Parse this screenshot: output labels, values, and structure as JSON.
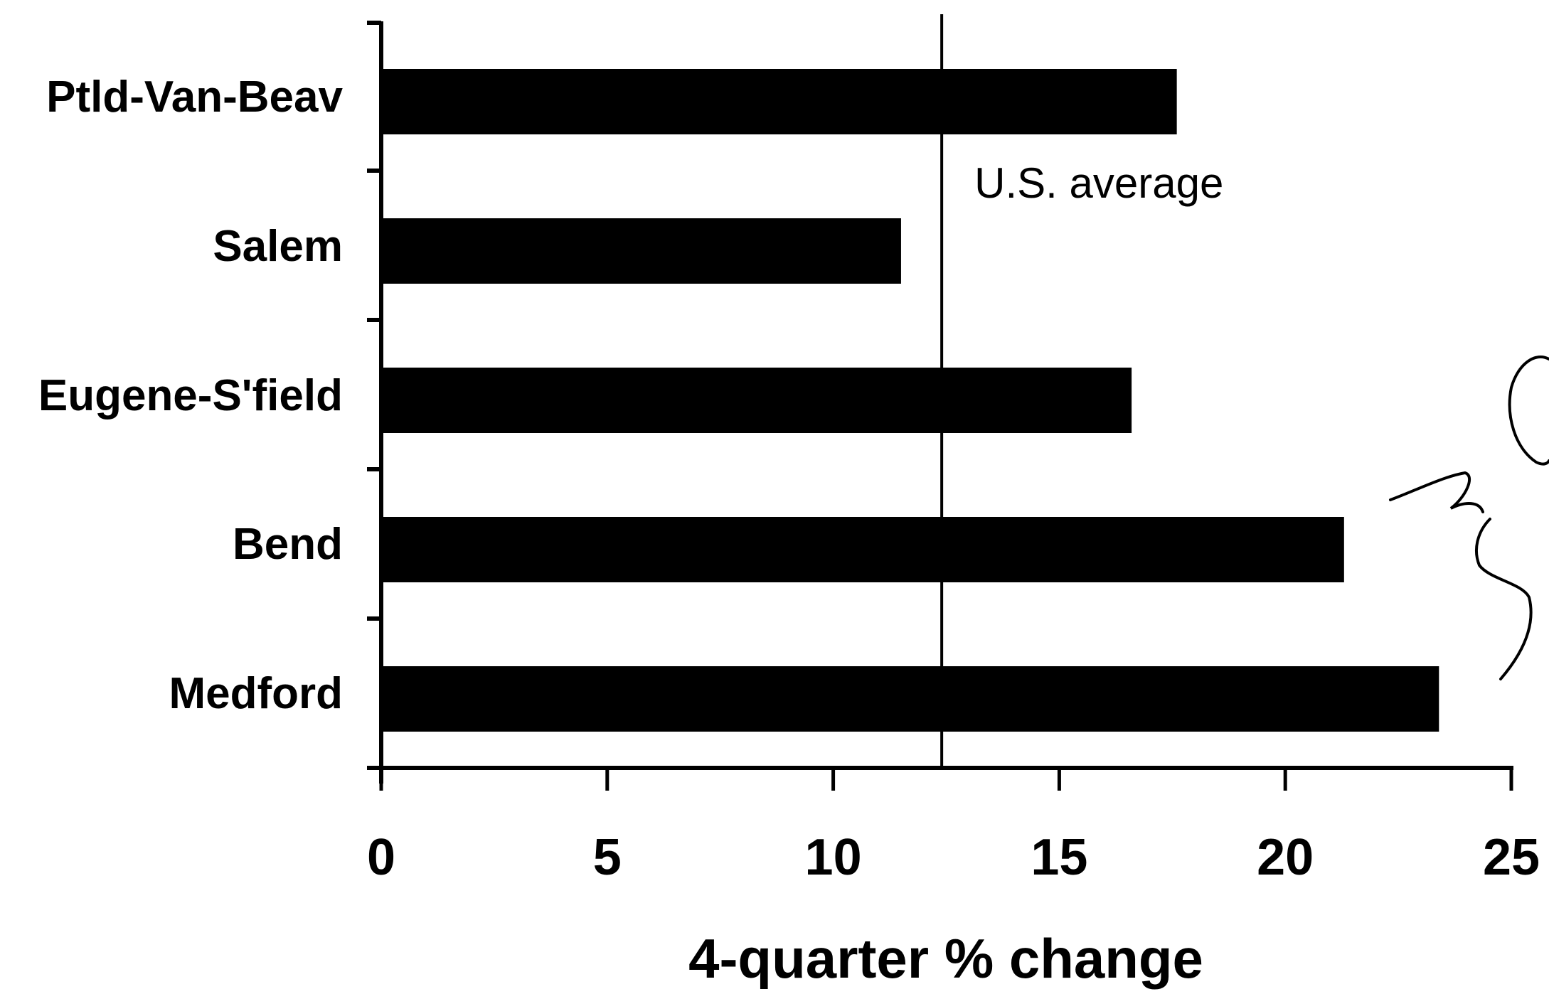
{
  "chart_data": {
    "type": "bar",
    "orientation": "horizontal",
    "categories": [
      "Ptld-Van-Beav",
      "Salem",
      "Eugene-S'field",
      "Bend",
      "Medford"
    ],
    "values": [
      17.6,
      11.5,
      16.6,
      21.3,
      23.4
    ],
    "xlabel": "4-quarter % change",
    "ylabel": "",
    "title": "",
    "xlim": [
      0,
      25
    ],
    "xticks": [
      0,
      5,
      10,
      15,
      20,
      25
    ],
    "xtick_labels": [
      "0",
      "5",
      "10",
      "15",
      "20",
      "25"
    ],
    "grid": false,
    "bar_color": "#000000",
    "reference_line": {
      "value": 12.4,
      "label": "U.S. average"
    }
  }
}
